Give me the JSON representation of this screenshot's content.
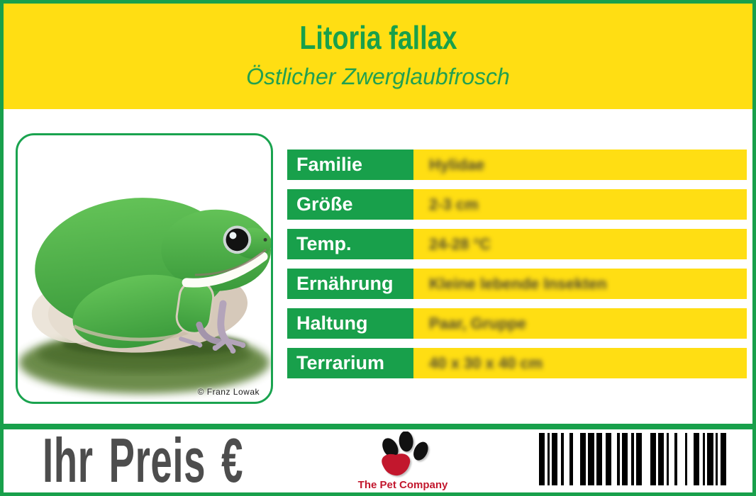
{
  "card": {
    "title": "Litoria fallax",
    "subtitle": "Östlicher Zwerglaubfrosch"
  },
  "photo": {
    "subject": "frog-photo",
    "credit": "© Franz Lowak"
  },
  "table": {
    "rows": [
      {
        "label": "Familie",
        "value": "Hylidae"
      },
      {
        "label": "Größe",
        "value": "2-3 cm"
      },
      {
        "label": "Temp.",
        "value": "24-28 °C"
      },
      {
        "label": "Ernährung",
        "value": "Kleine lebende Insekten"
      },
      {
        "label": "Haltung",
        "value": "Paar, Gruppe"
      },
      {
        "label": "Terrarium",
        "value": "40 x 30 x 40 cm"
      }
    ]
  },
  "footer": {
    "price_label": "Ihr Preis €",
    "company": "The Pet Company"
  },
  "colors": {
    "yellow": "#FFDE13",
    "green": "#18A04B",
    "price_gray": "#4D4D4D",
    "logo_red": "#C2172D",
    "barcode_black": "#000000"
  },
  "barcode": {
    "pattern": [
      5,
      2,
      2,
      2,
      5,
      3,
      2,
      5,
      3,
      6,
      5,
      2,
      5,
      2,
      5,
      3,
      5,
      5,
      2,
      2,
      5,
      3,
      2,
      2,
      5,
      7,
      5,
      2,
      5,
      2,
      2,
      5,
      2,
      7,
      2,
      5,
      5,
      3,
      2,
      2,
      5,
      2,
      2,
      2,
      5
    ]
  }
}
